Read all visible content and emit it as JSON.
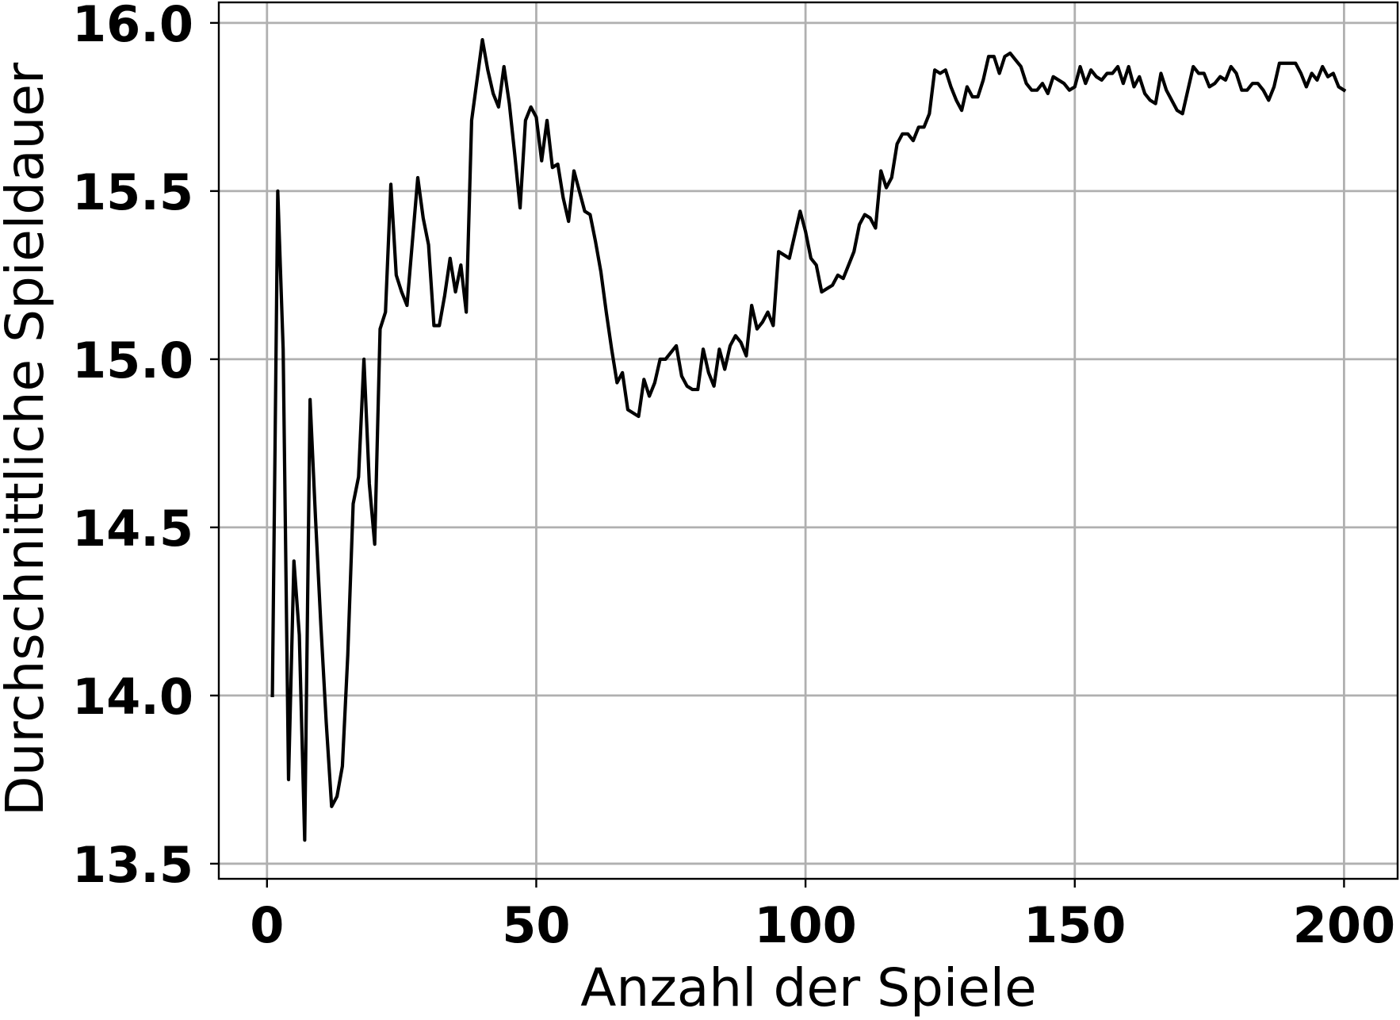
{
  "chart_data": {
    "type": "line",
    "title": "",
    "xlabel": "Anzahl der Spiele",
    "ylabel": "Durchschnittliche Spieldauer",
    "xlim": [
      -8.95,
      209.95
    ],
    "ylim": [
      13.455,
      16.061
    ],
    "xticks": [
      0,
      50,
      100,
      150,
      200
    ],
    "xtick_labels": [
      "0",
      "50",
      "100",
      "150",
      "200"
    ],
    "yticks": [
      13.5,
      14.0,
      14.5,
      15.0,
      15.5,
      16.0
    ],
    "ytick_labels": [
      "13.5",
      "14.0",
      "14.5",
      "15.0",
      "15.5",
      "16.0"
    ],
    "grid": true,
    "grid_color": "#b0b0b0",
    "axes_color": "#000000",
    "series": [
      {
        "color": "#000000",
        "x": [
          1,
          2,
          3,
          4,
          5,
          6,
          7,
          8,
          9,
          10,
          11,
          12,
          13,
          14,
          15,
          16,
          17,
          18,
          19,
          20,
          21,
          22,
          23,
          24,
          25,
          26,
          27,
          28,
          29,
          30,
          31,
          32,
          33,
          34,
          35,
          36,
          37,
          38,
          39,
          40,
          41,
          42,
          43,
          44,
          45,
          46,
          47,
          48,
          49,
          50,
          51,
          52,
          53,
          54,
          55,
          56,
          57,
          58,
          59,
          60,
          61,
          62,
          63,
          64,
          65,
          66,
          67,
          68,
          69,
          70,
          71,
          72,
          73,
          74,
          75,
          76,
          77,
          78,
          79,
          80,
          81,
          82,
          83,
          84,
          85,
          86,
          87,
          88,
          89,
          90,
          91,
          92,
          93,
          94,
          95,
          96,
          97,
          98,
          99,
          100,
          101,
          102,
          103,
          104,
          105,
          106,
          107,
          108,
          109,
          110,
          111,
          112,
          113,
          114,
          115,
          116,
          117,
          118,
          119,
          120,
          121,
          122,
          123,
          124,
          125,
          126,
          127,
          128,
          129,
          130,
          131,
          132,
          133,
          134,
          135,
          136,
          137,
          138,
          139,
          140,
          141,
          142,
          143,
          144,
          145,
          146,
          147,
          148,
          149,
          150,
          151,
          152,
          153,
          154,
          155,
          156,
          157,
          158,
          159,
          160,
          161,
          162,
          163,
          164,
          165,
          166,
          167,
          168,
          169,
          170,
          171,
          172,
          173,
          174,
          175,
          176,
          177,
          178,
          179,
          180,
          181,
          182,
          183,
          184,
          185,
          186,
          187,
          188,
          189,
          190,
          191,
          192,
          193,
          194,
          195,
          196,
          197,
          198,
          199,
          200
        ],
        "y": [
          14.0,
          15.5,
          15.03,
          13.75,
          14.4,
          14.18,
          13.57,
          14.88,
          14.53,
          14.21,
          13.92,
          13.67,
          13.7,
          13.79,
          14.12,
          14.57,
          14.65,
          15.0,
          14.63,
          14.45,
          15.09,
          15.14,
          15.52,
          15.25,
          15.2,
          15.16,
          15.35,
          15.54,
          15.42,
          15.34,
          15.1,
          15.1,
          15.19,
          15.3,
          15.2,
          15.28,
          15.14,
          15.71,
          15.83,
          15.95,
          15.86,
          15.79,
          15.75,
          15.87,
          15.76,
          15.61,
          15.45,
          15.71,
          15.75,
          15.72,
          15.59,
          15.71,
          15.57,
          15.58,
          15.48,
          15.41,
          15.56,
          15.5,
          15.44,
          15.43,
          15.35,
          15.26,
          15.14,
          15.03,
          14.93,
          14.96,
          14.85,
          14.84,
          14.83,
          14.94,
          14.89,
          14.93,
          15.0,
          15.0,
          15.02,
          15.04,
          14.95,
          14.92,
          14.91,
          14.91,
          15.03,
          14.96,
          14.92,
          15.03,
          14.97,
          15.04,
          15.07,
          15.05,
          15.01,
          15.16,
          15.09,
          15.11,
          15.14,
          15.1,
          15.32,
          15.31,
          15.3,
          15.37,
          15.44,
          15.38,
          15.3,
          15.28,
          15.2,
          15.21,
          15.22,
          15.25,
          15.24,
          15.28,
          15.32,
          15.4,
          15.43,
          15.42,
          15.39,
          15.56,
          15.51,
          15.54,
          15.64,
          15.67,
          15.67,
          15.65,
          15.69,
          15.69,
          15.73,
          15.86,
          15.85,
          15.86,
          15.81,
          15.77,
          15.74,
          15.81,
          15.78,
          15.78,
          15.83,
          15.9,
          15.9,
          15.85,
          15.9,
          15.91,
          15.89,
          15.87,
          15.82,
          15.8,
          15.8,
          15.82,
          15.79,
          15.84,
          15.83,
          15.82,
          15.8,
          15.81,
          15.87,
          15.82,
          15.86,
          15.84,
          15.83,
          15.85,
          15.85,
          15.87,
          15.82,
          15.87,
          15.81,
          15.84,
          15.79,
          15.77,
          15.76,
          15.85,
          15.8,
          15.77,
          15.74,
          15.73,
          15.8,
          15.87,
          15.85,
          15.85,
          15.81,
          15.82,
          15.84,
          15.83,
          15.87,
          15.85,
          15.8,
          15.8,
          15.82,
          15.82,
          15.8,
          15.77,
          15.81,
          15.88,
          15.88,
          15.88,
          15.88,
          15.85,
          15.81,
          15.85,
          15.83,
          15.87,
          15.84,
          15.85,
          15.81,
          15.8
        ]
      }
    ]
  }
}
